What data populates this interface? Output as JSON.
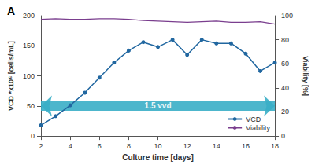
{
  "chart_data": {
    "type": "line",
    "title": "A",
    "x": [
      2,
      3,
      4,
      5,
      6,
      7,
      8,
      9,
      10,
      11,
      12,
      13,
      14,
      15,
      16,
      17,
      18
    ],
    "xlabel": "Culture time [days]",
    "ylabel": "VCD *x10⁶ [cells/mL]",
    "y2label": "Viability [%]",
    "series": [
      {
        "name": "VCD",
        "color": "#2167a0",
        "marker": "circle",
        "values": [
          18,
          33,
          51,
          72,
          97,
          122,
          142,
          156,
          148,
          160,
          135,
          160,
          154,
          154,
          137,
          108,
          122
        ]
      },
      {
        "name": "Viability",
        "color": "#7a3e8e",
        "marker": "none",
        "axis": "y2",
        "values": [
          97,
          97.5,
          97,
          97,
          97.5,
          97.5,
          97,
          96,
          95.5,
          95,
          94.5,
          95,
          95.5,
          94.5,
          94.5,
          95,
          93
        ]
      }
    ],
    "xlim": [
      2,
      18
    ],
    "xticks": [
      2,
      4,
      6,
      8,
      10,
      12,
      14,
      16,
      18
    ],
    "ylim": [
      0,
      200
    ],
    "yticks": [
      0,
      50,
      100,
      150,
      200
    ],
    "y2lim": [
      0,
      100
    ],
    "y2ticks": [
      0,
      20,
      40,
      60,
      80,
      100
    ],
    "grid": false,
    "legend": "lower right",
    "annotations": [
      {
        "text": "1.5 vvd",
        "x": [
          2,
          18
        ],
        "y": 50,
        "color": "#3aaec6"
      }
    ]
  }
}
